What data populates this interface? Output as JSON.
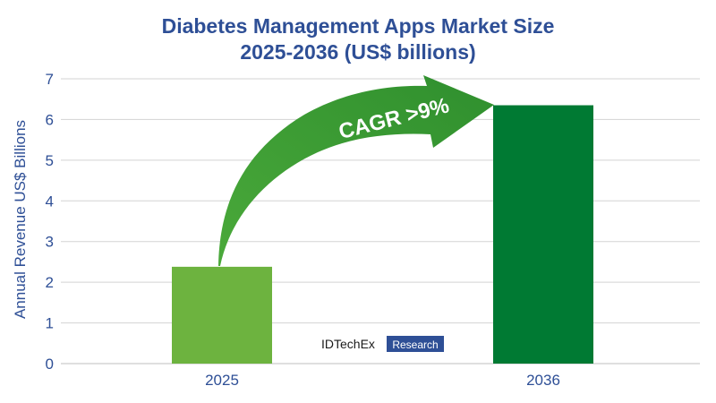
{
  "chart_data": {
    "type": "bar",
    "title": "Diabetes Management Apps Market Size",
    "subtitle": "2025-2036 (US$ billions)",
    "xlabel": "",
    "ylabel": "Annual Revenue US$ Billions",
    "categories": [
      "2025",
      "2036"
    ],
    "values": [
      2.38,
      6.35
    ],
    "bar_colors": [
      "#6db33f",
      "#007a33"
    ],
    "ylim": [
      0,
      7
    ],
    "yticks": [
      0,
      1,
      2,
      3,
      4,
      5,
      6,
      7
    ],
    "grid": true,
    "annotations": [
      {
        "text": "CAGR >9%",
        "shape": "curved-arrow",
        "color": "#3a9a35"
      }
    ]
  },
  "branding": {
    "name": "IDTechEx",
    "tag": "Research",
    "tag_color": "#2e4f96"
  }
}
